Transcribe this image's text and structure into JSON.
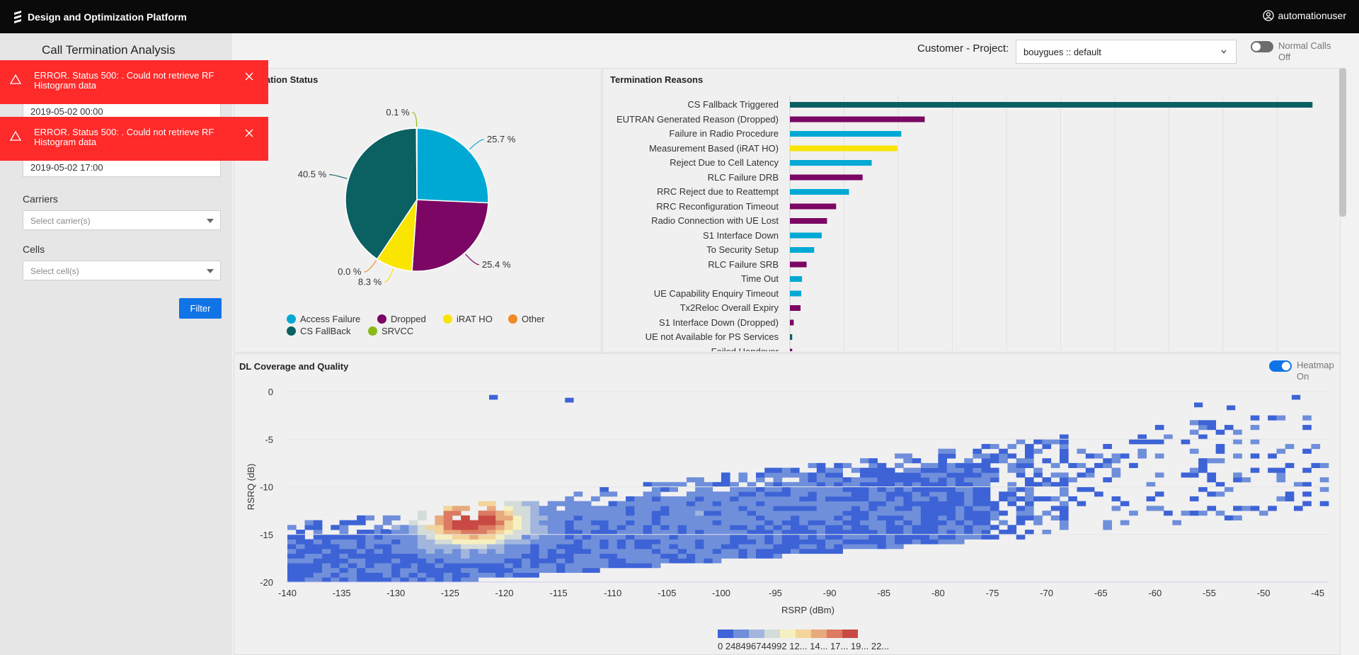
{
  "app": {
    "title": "Design and Optimization Platform",
    "user": "automationuser"
  },
  "page": {
    "title": "Call Termination Analysis"
  },
  "sidebar": {
    "start_date": "2019-05-02 00:00",
    "end_date": "2019-05-02 17:00",
    "carriers_label": "Carriers",
    "carriers_placeholder": "Select carrier(s)",
    "cells_label": "Cells",
    "cells_placeholder": "Select cell(s)",
    "filter_label": "Filter"
  },
  "toasts": [
    {
      "message": "ERROR. Status 500: . Could not retrieve RF Histogram data"
    },
    {
      "message": "ERROR. Status 500: . Could not retrieve RF Histogram data"
    }
  ],
  "header": {
    "customer_project_label": "Customer - Project:",
    "project_value": "bouygues :: default",
    "normal_calls_label": "Normal Calls",
    "normal_calls_state": "Off"
  },
  "termination_status": {
    "title": "nation Status",
    "legend": [
      {
        "name": "Access Failure",
        "color": "#00a9d4"
      },
      {
        "name": "Dropped",
        "color": "#7b0663"
      },
      {
        "name": "iRAT HO",
        "color": "#fae500"
      },
      {
        "name": "Other",
        "color": "#f08a24"
      },
      {
        "name": "CS FallBack",
        "color": "#0b6062"
      },
      {
        "name": "SRVCC",
        "color": "#89ba17"
      }
    ]
  },
  "termination_reasons": {
    "title": "Termination Reasons"
  },
  "dl_coverage": {
    "title": "DL Coverage and Quality",
    "heatmap_label": "Heatmap",
    "heatmap_state": "On",
    "colorbar_labels": "0 248496744992 12... 14... 17... 19... 22..."
  },
  "chart_data": [
    {
      "type": "pie",
      "labels": [
        "Access Failure",
        "Dropped",
        "iRAT HO",
        "Other",
        "CS FallBack",
        "SRVCC"
      ],
      "values": [
        25.7,
        25.4,
        8.3,
        0.0,
        40.5,
        0.1
      ],
      "value_labels": [
        "25.7 %",
        "25.4 %",
        "8.3 %",
        "0.0 %",
        "40.5 %",
        "0.1 %"
      ],
      "colors": [
        "#00a9d4",
        "#7b0663",
        "#fae500",
        "#f08a24",
        "#0b6062",
        "#89ba17"
      ]
    },
    {
      "type": "bar",
      "orientation": "horizontal",
      "categories": [
        "CS Fallback Triggered",
        "EUTRAN Generated Reason (Dropped)",
        "Failure in Radio Procedure",
        "Measurement Based (iRAT HO)",
        "Reject Due to Cell Latency",
        "RLC Failure DRB",
        "RRC Reject due to Reattempt",
        "RRC Reconfiguration Timeout",
        "Radio Connection with UE Lost",
        "S1 Interface Down",
        "To Security Setup",
        "RLC Failure SRB",
        "Time Out",
        "UE Capability Enquiry Timeout",
        "Tx2Reloc Overall Expiry",
        "S1 Interface Down (Dropped)",
        "UE not Available for PS Services",
        "Failed Handover"
      ],
      "values": [
        690,
        178,
        147,
        142,
        108,
        96,
        78,
        61,
        49,
        42,
        32,
        22,
        16,
        15,
        14,
        5,
        3,
        3
      ],
      "colors": [
        "#0b6062",
        "#7b0663",
        "#00a9d4",
        "#fae500",
        "#00a9d4",
        "#7b0663",
        "#00a9d4",
        "#7b0663",
        "#7b0663",
        "#00a9d4",
        "#00a9d4",
        "#7b0663",
        "#00a9d4",
        "#00a9d4",
        "#7b0663",
        "#7b0663",
        "#0b6062",
        "#7b0663"
      ]
    },
    {
      "type": "heatmap",
      "xlabel": "RSRP (dBm)",
      "ylabel": "RSRQ (dB)",
      "xlim": [
        -140,
        -44
      ],
      "ylim": [
        -20,
        0
      ],
      "xticks": [
        -140,
        -135,
        -130,
        -125,
        -120,
        -115,
        -110,
        -105,
        -100,
        -95,
        -90,
        -85,
        -80,
        -75,
        -70,
        -65,
        -60,
        -55,
        -50,
        -45
      ],
      "yticks": [
        0,
        -5,
        -10,
        -15,
        -20
      ],
      "colorscale": [
        "#3d63d6",
        "#6f8fdb",
        "#a2b6dd",
        "#d3dcd8",
        "#f6f0c0",
        "#f3d49a",
        "#e8a97c",
        "#dc7a63",
        "#c94a44"
      ],
      "peak": {
        "x": -123,
        "y": -13.5
      }
    }
  ]
}
